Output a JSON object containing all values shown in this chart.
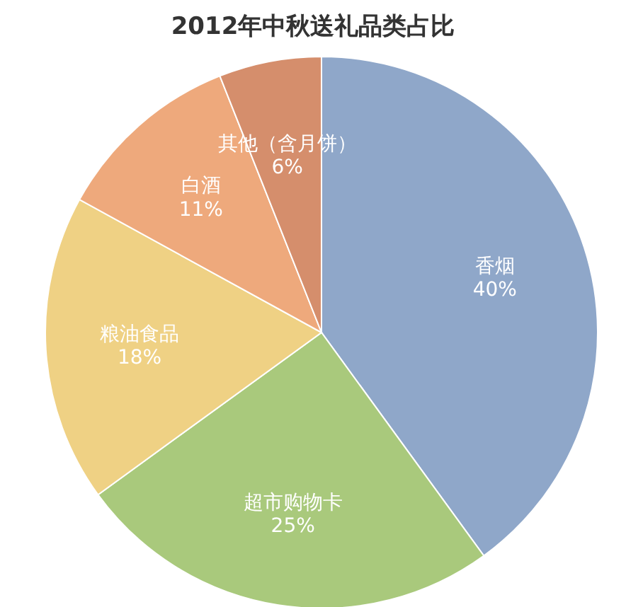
{
  "chart_data": {
    "type": "pie",
    "title": "2012年中秋送礼品类占比",
    "categories": [
      "香烟",
      "超市购物卡",
      "粮油食品",
      "白酒",
      "其他（含月饼）"
    ],
    "values": [
      40,
      25,
      18,
      11,
      6
    ],
    "colors": [
      "#8fa7c9",
      "#a9c97c",
      "#efd184",
      "#eea97c",
      "#d58e6c"
    ],
    "value_labels": [
      "40%",
      "25%",
      "18%",
      "11%",
      "6%"
    ],
    "legend": false
  }
}
